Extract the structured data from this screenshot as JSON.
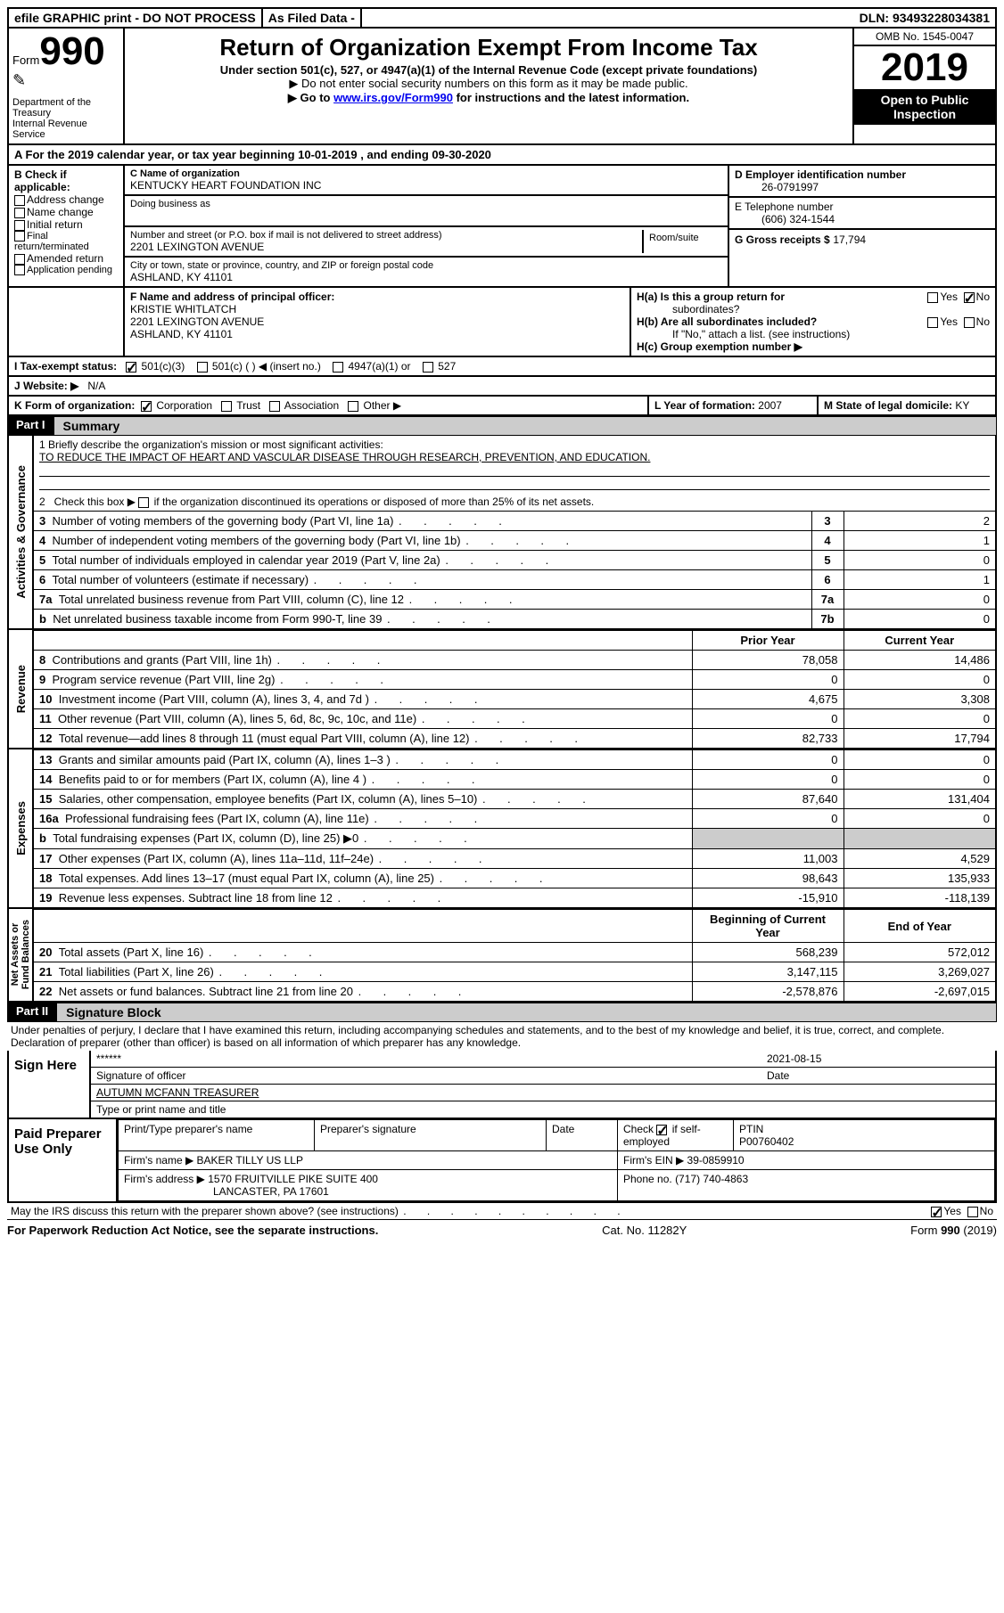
{
  "topbar": {
    "efile": "efile GRAPHIC print - DO NOT PROCESS",
    "asfiled": "As Filed Data -",
    "dln_label": "DLN:",
    "dln": "93493228034381"
  },
  "header": {
    "form_label": "Form",
    "form_num": "990",
    "dept": "Department of the Treasury\nInternal Revenue Service",
    "title": "Return of Organization Exempt From Income Tax",
    "subtitle": "Under section 501(c), 527, or 4947(a)(1) of the Internal Revenue Code (except private foundations)",
    "note1": "▶ Do not enter social security numbers on this form as it may be made public.",
    "note2_pre": "▶ Go to ",
    "note2_link": "www.irs.gov/Form990",
    "note2_post": " for instructions and the latest information.",
    "omb": "OMB No. 1545-0047",
    "year": "2019",
    "inspect": "Open to Public Inspection"
  },
  "lineA": "A   For the 2019 calendar year, or tax year beginning 10-01-2019    , and ending 09-30-2020",
  "boxB": {
    "label": "B Check if applicable:",
    "items": [
      "Address change",
      "Name change",
      "Initial return",
      "Final return/terminated",
      "Amended return",
      "Application pending"
    ]
  },
  "boxC": {
    "label": "C Name of organization",
    "name": "KENTUCKY HEART FOUNDATION INC",
    "dba_label": "Doing business as",
    "street_label": "Number and street (or P.O. box if mail is not delivered to street address)",
    "room_label": "Room/suite",
    "street": "2201 LEXINGTON AVENUE",
    "city_label": "City or town, state or province, country, and ZIP or foreign postal code",
    "city": "ASHLAND, KY  41101"
  },
  "boxD": {
    "label": "D Employer identification number",
    "value": "26-0791997"
  },
  "boxE": {
    "label": "E Telephone number",
    "value": "(606) 324-1544"
  },
  "boxG": {
    "label": "G Gross receipts $",
    "value": "17,794"
  },
  "boxF": {
    "label": "F   Name and address of principal officer:",
    "name": "KRISTIE WHITLATCH",
    "addr1": "2201 LEXINGTON AVENUE",
    "addr2": "ASHLAND, KY  41101"
  },
  "boxH": {
    "a_label": "H(a)  Is this a group return for",
    "a_label2": "subordinates?",
    "b_label": "H(b)  Are all subordinates included?",
    "b_note": "If \"No,\" attach a list. (see instructions)",
    "c_label": "H(c)  Group exemption number ▶",
    "yes": "Yes",
    "no": "No"
  },
  "lineI": {
    "label": "I    Tax-exempt status:",
    "o1": "501(c)(3)",
    "o2": "501(c) (   ) ◀ (insert no.)",
    "o3": "4947(a)(1) or",
    "o4": "527"
  },
  "lineJ": {
    "label": "J    Website: ▶",
    "value": "N/A"
  },
  "lineK": {
    "label": "K Form of organization:",
    "o1": "Corporation",
    "o2": "Trust",
    "o3": "Association",
    "o4": "Other ▶"
  },
  "lineL": {
    "label": "L Year of formation:",
    "value": "2007"
  },
  "lineM": {
    "label": "M State of legal domicile:",
    "value": "KY"
  },
  "partI": {
    "tag": "Part I",
    "title": "Summary"
  },
  "activities": {
    "vlabel": "Activities & Governance",
    "l1": "1  Briefly describe the organization's mission or most significant activities:",
    "mission": "TO REDUCE THE IMPACT OF HEART AND VASCULAR DISEASE THROUGH RESEARCH, PREVENTION, AND EDUCATION.",
    "l2": "2   Check this box ▶        if the organization discontinued its operations or disposed of more than 25% of its net assets.",
    "rows": [
      {
        "n": "3",
        "t": "Number of voting members of the governing body (Part VI, line 1a)",
        "lab": "3",
        "v": "2"
      },
      {
        "n": "4",
        "t": "Number of independent voting members of the governing body (Part VI, line 1b)",
        "lab": "4",
        "v": "1"
      },
      {
        "n": "5",
        "t": "Total number of individuals employed in calendar year 2019 (Part V, line 2a)",
        "lab": "5",
        "v": "0"
      },
      {
        "n": "6",
        "t": "Total number of volunteers (estimate if necessary)",
        "lab": "6",
        "v": "1"
      },
      {
        "n": "7a",
        "t": "Total unrelated business revenue from Part VIII, column (C), line 12",
        "lab": "7a",
        "v": "0"
      },
      {
        "n": "b",
        "t": "Net unrelated business taxable income from Form 990-T, line 39",
        "lab": "7b",
        "v": "0"
      }
    ]
  },
  "revenue": {
    "vlabel": "Revenue",
    "head_prior": "Prior Year",
    "head_curr": "Current Year",
    "rows": [
      {
        "n": "8",
        "t": "Contributions and grants (Part VIII, line 1h)",
        "p": "78,058",
        "c": "14,486"
      },
      {
        "n": "9",
        "t": "Program service revenue (Part VIII, line 2g)",
        "p": "0",
        "c": "0"
      },
      {
        "n": "10",
        "t": "Investment income (Part VIII, column (A), lines 3, 4, and 7d )",
        "p": "4,675",
        "c": "3,308"
      },
      {
        "n": "11",
        "t": "Other revenue (Part VIII, column (A), lines 5, 6d, 8c, 9c, 10c, and 11e)",
        "p": "0",
        "c": "0"
      },
      {
        "n": "12",
        "t": "Total revenue—add lines 8 through 11 (must equal Part VIII, column (A), line 12)",
        "p": "82,733",
        "c": "17,794"
      }
    ]
  },
  "expenses": {
    "vlabel": "Expenses",
    "rows": [
      {
        "n": "13",
        "t": "Grants and similar amounts paid (Part IX, column (A), lines 1–3 )",
        "p": "0",
        "c": "0"
      },
      {
        "n": "14",
        "t": "Benefits paid to or for members (Part IX, column (A), line 4 )",
        "p": "0",
        "c": "0"
      },
      {
        "n": "15",
        "t": "Salaries, other compensation, employee benefits (Part IX, column (A), lines 5–10)",
        "p": "87,640",
        "c": "131,404"
      },
      {
        "n": "16a",
        "t": "Professional fundraising fees (Part IX, column (A), line 11e)",
        "p": "0",
        "c": "0"
      },
      {
        "n": "b",
        "t": "Total fundraising expenses (Part IX, column (D), line 25) ▶0",
        "p": "",
        "c": ""
      },
      {
        "n": "17",
        "t": "Other expenses (Part IX, column (A), lines 11a–11d, 11f–24e)",
        "p": "11,003",
        "c": "4,529"
      },
      {
        "n": "18",
        "t": "Total expenses. Add lines 13–17 (must equal Part IX, column (A), line 25)",
        "p": "98,643",
        "c": "135,933"
      },
      {
        "n": "19",
        "t": "Revenue less expenses. Subtract line 18 from line 12",
        "p": "-15,910",
        "c": "-118,139"
      }
    ]
  },
  "netassets": {
    "vlabel": "Net Assets or\nFund Balances",
    "head_beg": "Beginning of Current Year",
    "head_end": "End of Year",
    "rows": [
      {
        "n": "20",
        "t": "Total assets (Part X, line 16)",
        "p": "568,239",
        "c": "572,012"
      },
      {
        "n": "21",
        "t": "Total liabilities (Part X, line 26)",
        "p": "3,147,115",
        "c": "3,269,027"
      },
      {
        "n": "22",
        "t": "Net assets or fund balances. Subtract line 21 from line 20",
        "p": "-2,578,876",
        "c": "-2,697,015"
      }
    ]
  },
  "partII": {
    "tag": "Part II",
    "title": "Signature Block"
  },
  "sig": {
    "penalty": "Under penalties of perjury, I declare that I have examined this return, including accompanying schedules and statements, and to the best of my knowledge and belief, it is true, correct, and complete. Declaration of preparer (other than officer) is based on all information of which preparer has any knowledge.",
    "sign_here": "Sign Here",
    "stars": "******",
    "sig_of_officer": "Signature of officer",
    "date_label": "Date",
    "date": "2021-08-15",
    "name_title": "AUTUMN MCFANN TREASURER",
    "type_name": "Type or print name and title"
  },
  "prep": {
    "label": "Paid Preparer Use Only",
    "h_print": "Print/Type preparer's name",
    "h_sig": "Preparer's signature",
    "h_date": "Date",
    "h_check": "Check         if self-employed",
    "h_ptin": "PTIN",
    "ptin": "P00760402",
    "firm_name_l": "Firm's name    ▶",
    "firm_name": "BAKER TILLY US LLP",
    "firm_ein_l": "Firm's EIN ▶",
    "firm_ein": "39-0859910",
    "firm_addr_l": "Firm's address ▶",
    "firm_addr": "1570 FRUITVILLE PIKE SUITE 400",
    "firm_addr2": "LANCASTER, PA  17601",
    "phone_l": "Phone no.",
    "phone": "(717) 740-4863"
  },
  "bottom": {
    "discuss": "May the IRS discuss this return with the preparer shown above? (see instructions)",
    "yes": "Yes",
    "no": "No",
    "paperwork": "For Paperwork Reduction Act Notice, see the separate instructions.",
    "cat": "Cat. No. 11282Y",
    "form": "Form 990 (2019)"
  }
}
